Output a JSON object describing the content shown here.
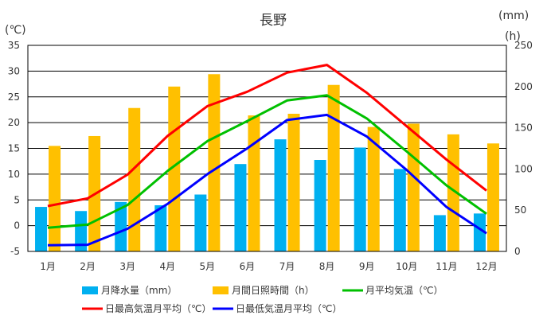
{
  "chart_data": {
    "type": "bar",
    "title": "長野",
    "left_axis_unit": "(℃)",
    "right_axis_units": [
      "(mm)",
      "(h)"
    ],
    "categories": [
      "1月",
      "2月",
      "3月",
      "4月",
      "5月",
      "6月",
      "7月",
      "8月",
      "9月",
      "10月",
      "11月",
      "12月"
    ],
    "left_axis": {
      "min": -5,
      "max": 35,
      "ticks": [
        35,
        30,
        25,
        20,
        15,
        10,
        5,
        0,
        -5
      ]
    },
    "right_axis": {
      "min": 0,
      "max": 250,
      "ticks": [
        250,
        200,
        150,
        100,
        50,
        0
      ]
    },
    "grid": true,
    "legend_position": "bottom",
    "bar_series": [
      {
        "name": "月降水量（mm）",
        "axis": "right",
        "color": "#00B0F0",
        "values": [
          54,
          49,
          60,
          56,
          69,
          106,
          136,
          111,
          126,
          100,
          44,
          46
        ]
      },
      {
        "name": "月間日照時間（h）",
        "axis": "right",
        "color": "#FFC000",
        "values": [
          128,
          140,
          174,
          200,
          215,
          165,
          167,
          202,
          151,
          155,
          142,
          131
        ]
      }
    ],
    "line_series": [
      {
        "name": "月平均気温（℃）",
        "axis": "left",
        "color": "#00C000",
        "values": [
          -0.4,
          0.2,
          4.0,
          10.6,
          16.4,
          20.3,
          24.3,
          25.3,
          20.8,
          14.4,
          7.8,
          2.3
        ]
      },
      {
        "name": "日最高気温月平均（℃）",
        "axis": "left",
        "color": "#FF0000",
        "values": [
          3.8,
          5.3,
          9.9,
          17.4,
          23.2,
          26.0,
          29.7,
          31.2,
          25.8,
          19.3,
          12.8,
          6.8
        ]
      },
      {
        "name": "日最低気温月平均（℃）",
        "axis": "left",
        "color": "#0000FF",
        "values": [
          -3.8,
          -3.7,
          -0.6,
          4.2,
          10.0,
          15.0,
          20.5,
          21.5,
          17.3,
          10.8,
          3.6,
          -1.5
        ]
      }
    ]
  }
}
